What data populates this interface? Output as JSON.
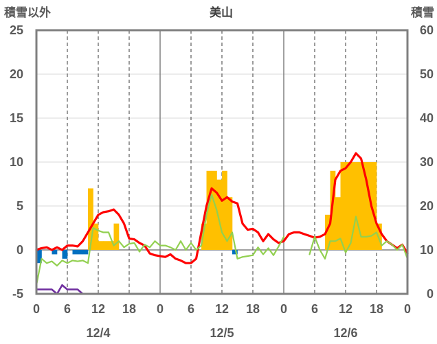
{
  "chart_data": {
    "type": "bar+line",
    "title": "美山",
    "left_axis_label": "積雪以外",
    "right_axis_label": "積雪",
    "left_ylim": [
      -5,
      25
    ],
    "left_ticks": [
      25,
      20,
      15,
      10,
      5,
      0,
      -5
    ],
    "right_ylim": [
      0,
      60
    ],
    "right_ticks": [
      60,
      50,
      40,
      30,
      20,
      10,
      0
    ],
    "x_tick_labels": [
      "0",
      "6",
      "12",
      "18",
      "0",
      "6",
      "12",
      "18",
      "0",
      "6",
      "12",
      "18",
      "0"
    ],
    "x_range_hours": [
      0,
      72
    ],
    "day_labels": [
      "12/4",
      "12/5",
      "12/6"
    ],
    "grid": true,
    "series": [
      {
        "name": "",
        "kind": "bar",
        "color": "#FFC000",
        "axis": "left",
        "values": [
          [
            10,
            7
          ],
          [
            11,
            3
          ],
          [
            12,
            1
          ],
          [
            13,
            1
          ],
          [
            14,
            1
          ],
          [
            15,
            3
          ],
          [
            32,
            3
          ],
          [
            33,
            9
          ],
          [
            34,
            9
          ],
          [
            35,
            8
          ],
          [
            36,
            9
          ],
          [
            37,
            6
          ],
          [
            56,
            4
          ],
          [
            57,
            9
          ],
          [
            58,
            6
          ],
          [
            59,
            10
          ],
          [
            60,
            10
          ],
          [
            61,
            10
          ],
          [
            62,
            10
          ],
          [
            63,
            10
          ],
          [
            64,
            10
          ],
          [
            65,
            10
          ],
          [
            66,
            3
          ]
        ]
      },
      {
        "name": "",
        "kind": "bar",
        "color": "#0070C0",
        "axis": "left",
        "values": [
          [
            0,
            -1.5
          ],
          [
            3,
            -0.5
          ],
          [
            5,
            -1
          ],
          [
            7,
            -0.5
          ],
          [
            8,
            -0.5
          ],
          [
            9,
            -0.5
          ],
          [
            38,
            -0.5
          ]
        ]
      },
      {
        "name": "",
        "kind": "line",
        "color": "#FF0000",
        "axis": "left",
        "points": [
          [
            0,
            0
          ],
          [
            1,
            0.2
          ],
          [
            2,
            0.3
          ],
          [
            3,
            0
          ],
          [
            4,
            0.3
          ],
          [
            5,
            0
          ],
          [
            6,
            0.5
          ],
          [
            7,
            0.5
          ],
          [
            8,
            0.4
          ],
          [
            9,
            1
          ],
          [
            10,
            2
          ],
          [
            11,
            3
          ],
          [
            12,
            4
          ],
          [
            13,
            4.3
          ],
          [
            14,
            4.4
          ],
          [
            15,
            4.6
          ],
          [
            16,
            4
          ],
          [
            17,
            3
          ],
          [
            18,
            1.3
          ],
          [
            19,
            1.2
          ],
          [
            20,
            0.8
          ],
          [
            21,
            0.5
          ],
          [
            22,
            -0.4
          ],
          [
            23,
            -0.6
          ],
          [
            24,
            -0.7
          ],
          [
            25,
            -0.8
          ],
          [
            26,
            -0.5
          ],
          [
            27,
            -1
          ],
          [
            28,
            -1.2
          ],
          [
            29,
            -1.5
          ],
          [
            30,
            -1.5
          ],
          [
            31,
            -1
          ],
          [
            32,
            2
          ],
          [
            33,
            5
          ],
          [
            34,
            7
          ],
          [
            35,
            6.5
          ],
          [
            36,
            5.6
          ],
          [
            37,
            6
          ],
          [
            38,
            5.5
          ],
          [
            39,
            5.3
          ],
          [
            40,
            3
          ],
          [
            41,
            2.3
          ],
          [
            42,
            2.4
          ],
          [
            43,
            2
          ],
          [
            44,
            1
          ],
          [
            45,
            1.8
          ],
          [
            46,
            1.2
          ],
          [
            47,
            0.8
          ],
          [
            48,
            1
          ],
          [
            49,
            1.8
          ],
          [
            50,
            2
          ],
          [
            51,
            2
          ],
          [
            52,
            1.8
          ],
          [
            53,
            1.6
          ],
          [
            54,
            1.4
          ],
          [
            55,
            1.5
          ],
          [
            56,
            1.8
          ],
          [
            57,
            3
          ],
          [
            58,
            8
          ],
          [
            59,
            9
          ],
          [
            60,
            9.3
          ],
          [
            61,
            10
          ],
          [
            62,
            11
          ],
          [
            63,
            10.4
          ],
          [
            64,
            8
          ],
          [
            65,
            5
          ],
          [
            66,
            3
          ],
          [
            67,
            1.8
          ],
          [
            68,
            1
          ],
          [
            69,
            0.6
          ],
          [
            70,
            0.2
          ],
          [
            71,
            0.6
          ],
          [
            72,
            -0.4
          ]
        ]
      },
      {
        "name": "",
        "kind": "line",
        "color": "#92D050",
        "axis": "left",
        "points": [
          [
            0,
            -4
          ],
          [
            1,
            -1
          ],
          [
            2,
            -1.5
          ],
          [
            3,
            -1.3
          ],
          [
            4,
            -1.8
          ],
          [
            5,
            -1.2
          ],
          [
            6,
            -1.5
          ],
          [
            7,
            -1.2
          ],
          [
            8,
            -1.3
          ],
          [
            9,
            -1.2
          ],
          [
            10,
            -1.5
          ],
          [
            11,
            2.5
          ],
          [
            12,
            2.2
          ],
          [
            13,
            2
          ],
          [
            14,
            2
          ],
          [
            15,
            0.5
          ],
          [
            16,
            1
          ],
          [
            17,
            0.3
          ],
          [
            18,
            0.7
          ],
          [
            19,
            0.8
          ],
          [
            20,
            -0.2
          ],
          [
            21,
            0.6
          ],
          [
            22,
            0.3
          ],
          [
            23,
            1
          ],
          [
            24,
            0.5
          ],
          [
            25,
            0.5
          ],
          [
            26,
            0.3
          ],
          [
            27,
            0
          ],
          [
            28,
            1
          ],
          [
            29,
            0
          ],
          [
            30,
            0.8
          ],
          [
            31,
            0
          ],
          [
            32,
            0.5
          ],
          [
            33,
            4
          ],
          [
            34,
            6.3
          ],
          [
            35,
            4.5
          ],
          [
            36,
            2
          ],
          [
            37,
            1
          ],
          [
            38,
            2
          ],
          [
            39,
            -1
          ],
          [
            40,
            -0.8
          ],
          [
            41,
            -0.7
          ],
          [
            42,
            -0.6
          ],
          [
            43,
            0.3
          ],
          [
            44,
            -0.5
          ],
          [
            45,
            0.2
          ],
          [
            46,
            -0.6
          ],
          [
            47,
            0.4
          ],
          [
            48,
            1.5
          ],
          null,
          [
            53,
            -0.5
          ],
          [
            54,
            1.5
          ],
          [
            55,
            0
          ],
          [
            56,
            -1
          ],
          [
            57,
            1
          ],
          [
            58,
            1
          ],
          [
            59,
            1.3
          ],
          [
            60,
            -0.3
          ],
          [
            61,
            0.8
          ],
          [
            62,
            3.8
          ],
          [
            63,
            1.5
          ],
          [
            64,
            1.5
          ],
          [
            65,
            1.6
          ],
          [
            66,
            2
          ],
          [
            67,
            0.5
          ],
          [
            68,
            1
          ],
          [
            69,
            0.6
          ],
          [
            70,
            0
          ],
          [
            71,
            0.6
          ],
          [
            72,
            -1
          ]
        ]
      },
      {
        "name": "",
        "kind": "line",
        "color": "#7030A0",
        "axis": "left",
        "points": [
          [
            0,
            -4.5
          ],
          [
            1,
            -4.5
          ],
          [
            2,
            -4.5
          ],
          [
            3,
            -4.5
          ],
          [
            4,
            -5
          ],
          [
            5,
            -4
          ],
          [
            6,
            -4.5
          ],
          [
            7,
            -4.5
          ],
          [
            8,
            -4.5
          ],
          [
            9,
            -5
          ],
          [
            10,
            -5
          ],
          [
            72,
            -5
          ]
        ]
      }
    ]
  }
}
